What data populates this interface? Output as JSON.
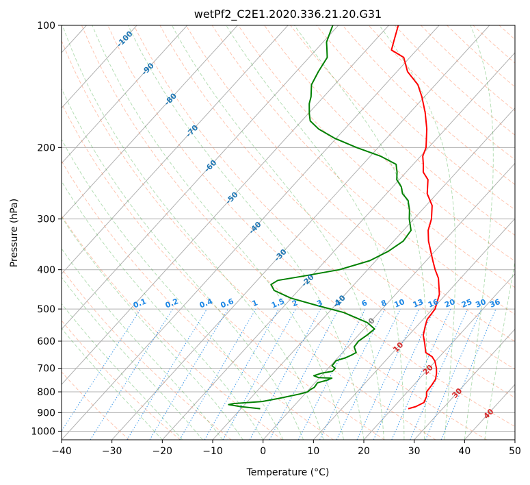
{
  "chart_data": {
    "type": "line",
    "title": "wetPf2_C2E1.2020.336.21.20.G31",
    "xlabel": "Temperature (°C)",
    "ylabel": "Pressure (hPa)",
    "xlim": [
      -40,
      50
    ],
    "ylim": [
      1050,
      100
    ],
    "y_scale": "log",
    "x_ticks": [
      -40,
      -30,
      -20,
      -10,
      0,
      10,
      20,
      30,
      40,
      50
    ],
    "y_ticks": [
      100,
      200,
      300,
      400,
      500,
      600,
      700,
      800,
      900,
      1000
    ],
    "grid": true,
    "skew": "skew-T log-p",
    "series": [
      {
        "role": "temperature",
        "color": "#ff0000",
        "points": [
          [
            23.2,
            880
          ],
          [
            24.3,
            870
          ],
          [
            25.2,
            850
          ],
          [
            24.6,
            820
          ],
          [
            23.8,
            800
          ],
          [
            23.6,
            770
          ],
          [
            23.3,
            745
          ],
          [
            22.4,
            720
          ],
          [
            21.5,
            700
          ],
          [
            19.9,
            672
          ],
          [
            18.5,
            655
          ],
          [
            16.5,
            640
          ],
          [
            14.8,
            610
          ],
          [
            12.9,
            580
          ],
          [
            11.6,
            550
          ],
          [
            10.8,
            530
          ],
          [
            10.5,
            500
          ],
          [
            8.7,
            460
          ],
          [
            5.6,
            420
          ],
          [
            3.4,
            400
          ],
          [
            1.3,
            380
          ],
          [
            -3.1,
            340
          ],
          [
            -5.1,
            320
          ],
          [
            -6.5,
            300
          ],
          [
            -8.8,
            278
          ],
          [
            -11.9,
            260
          ],
          [
            -14.3,
            240
          ],
          [
            -16.6,
            230
          ],
          [
            -18.0,
            220
          ],
          [
            -19.6,
            210
          ],
          [
            -20.5,
            200
          ],
          [
            -23.7,
            180
          ],
          [
            -27.0,
            164
          ],
          [
            -30.5,
            150
          ],
          [
            -33.5,
            140
          ],
          [
            -37.9,
            130
          ],
          [
            -41.2,
            120
          ],
          [
            -45.0,
            115
          ],
          [
            -46.0,
            110
          ],
          [
            -48.1,
            100
          ]
        ]
      },
      {
        "role": "dewpoint",
        "color": "#008000",
        "points": [
          [
            -6.2,
            880
          ],
          [
            -10.4,
            870
          ],
          [
            -13.2,
            860
          ],
          [
            -12.4,
            855
          ],
          [
            -7.1,
            845
          ],
          [
            -4.3,
            830
          ],
          [
            -1.0,
            810
          ],
          [
            0.2,
            800
          ],
          [
            0.3,
            790
          ],
          [
            0.7,
            780
          ],
          [
            0.5,
            760
          ],
          [
            1.8,
            750
          ],
          [
            2.5,
            740
          ],
          [
            -0.2,
            738
          ],
          [
            -1.5,
            730
          ],
          [
            -0.5,
            720
          ],
          [
            1.4,
            712
          ],
          [
            1.4,
            700
          ],
          [
            0.3,
            690
          ],
          [
            0.2,
            670
          ],
          [
            1.5,
            660
          ],
          [
            2.2,
            650
          ],
          [
            2.7,
            640
          ],
          [
            1.3,
            620
          ],
          [
            1.1,
            600
          ],
          [
            1.7,
            580
          ],
          [
            2.1,
            560
          ],
          [
            -0.5,
            540
          ],
          [
            -7.0,
            510
          ],
          [
            -13.6,
            490
          ],
          [
            -20.1,
            470
          ],
          [
            -24.8,
            450
          ],
          [
            -26.5,
            435
          ],
          [
            -25.9,
            425
          ],
          [
            -21.7,
            415
          ],
          [
            -15.6,
            400
          ],
          [
            -11.2,
            380
          ],
          [
            -9.2,
            360
          ],
          [
            -8.1,
            340
          ],
          [
            -8.5,
            320
          ],
          [
            -10.9,
            300
          ],
          [
            -12.5,
            285
          ],
          [
            -14.5,
            270
          ],
          [
            -16.8,
            260
          ],
          [
            -18.3,
            250
          ],
          [
            -20.5,
            240
          ],
          [
            -21.8,
            230
          ],
          [
            -23.4,
            220
          ],
          [
            -28.0,
            210
          ],
          [
            -34.3,
            200
          ],
          [
            -40.2,
            190
          ],
          [
            -45.2,
            180
          ],
          [
            -48.3,
            172
          ],
          [
            -49.8,
            165
          ],
          [
            -51.6,
            156
          ],
          [
            -52.5,
            150
          ],
          [
            -54.6,
            140
          ],
          [
            -55.6,
            130
          ],
          [
            -56.4,
            120
          ],
          [
            -58.1,
            114
          ],
          [
            -59.3,
            110
          ],
          [
            -60.2,
            105
          ],
          [
            -61.1,
            100
          ]
        ]
      }
    ],
    "dry_adiabat_labels": [
      "-100",
      "-90",
      "-80",
      "-70",
      "-60",
      "-50",
      "-40",
      "-30",
      "-20",
      "-10",
      "0",
      "10",
      "20",
      "30",
      "40"
    ],
    "mixing_ratio_labels": [
      "0.1",
      "0.2",
      "0.4",
      "0.6",
      "1",
      "1.5",
      "2",
      "3",
      "4",
      "6",
      "8",
      "10",
      "13",
      "16",
      "20",
      "25",
      "30",
      "36"
    ],
    "colors": {
      "temperature": "#ff0000",
      "dewpoint": "#008000",
      "dry_adiabats": "#ff7f50",
      "moist_adiabats": "#2ca02c",
      "mixing_ratio": "#1e88e5",
      "isotherms": "#808080",
      "label_cold": "#1f77b4",
      "label_warm": "#d62728"
    }
  }
}
